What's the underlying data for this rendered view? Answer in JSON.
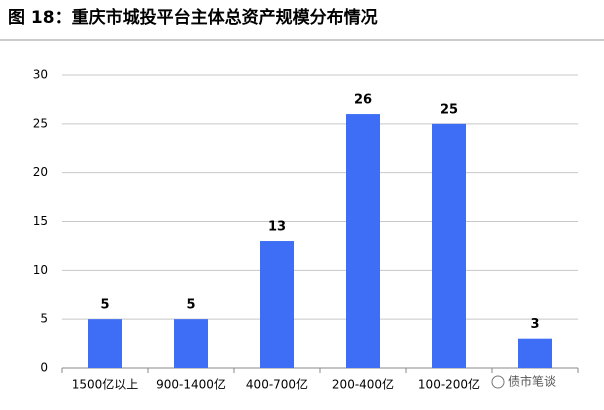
{
  "chart_data": {
    "type": "bar",
    "title": "图 18：重庆市城投平台主体总资产规模分布情况",
    "categories": [
      "1500亿以上",
      "900-1400亿",
      "400-700亿",
      "200-400亿",
      "100-200亿",
      null
    ],
    "values": [
      5,
      5,
      13,
      26,
      25,
      3
    ],
    "color": "#3d6ef5",
    "ylim": [
      0,
      30
    ],
    "yticks": [
      0,
      5,
      10,
      15,
      20,
      25,
      30
    ],
    "grid": true,
    "watermark": "债市笔谈"
  }
}
